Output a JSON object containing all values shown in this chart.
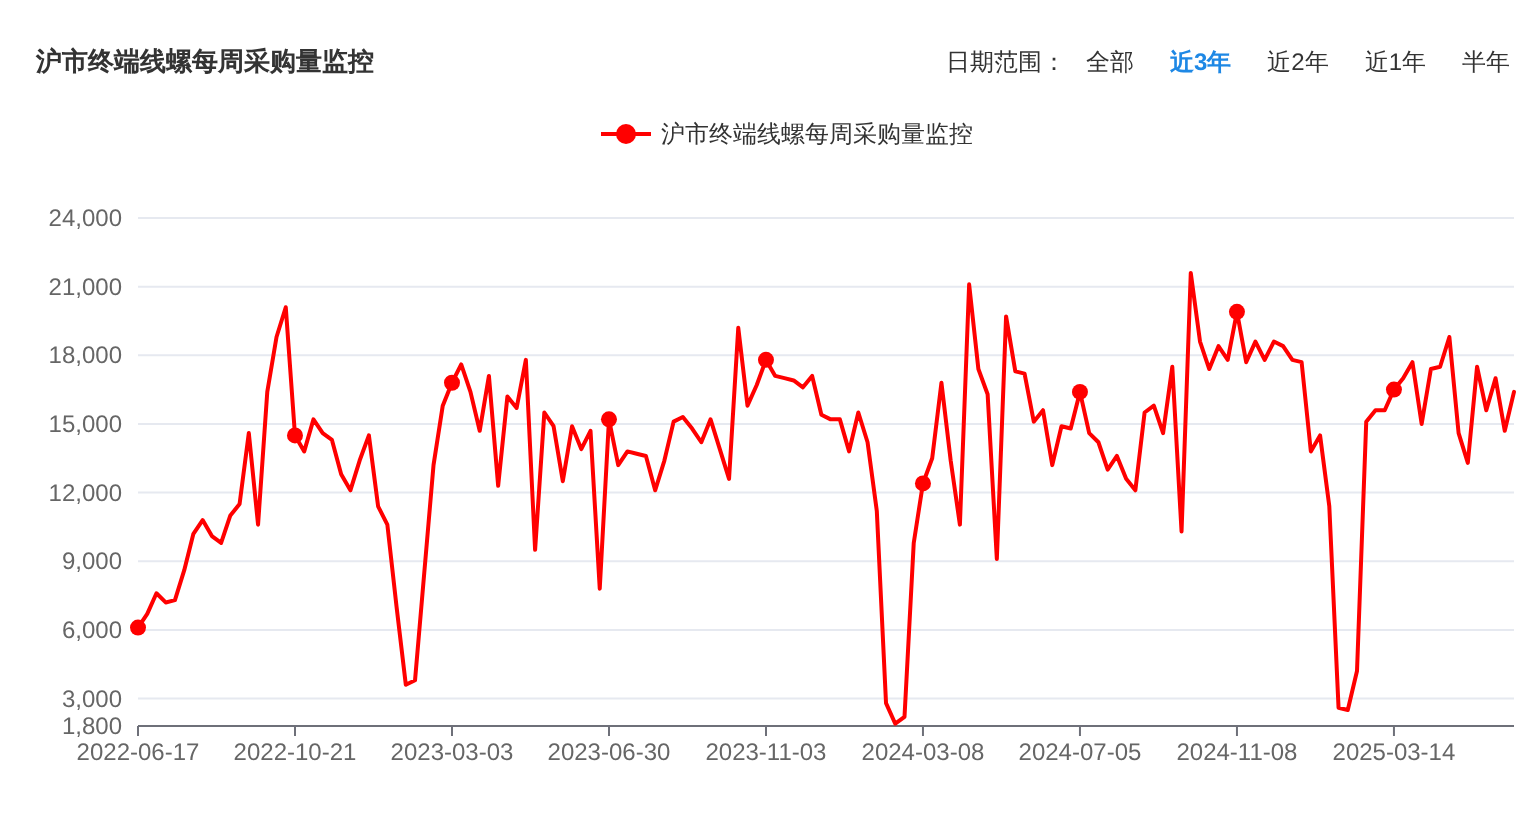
{
  "chart_data": {
    "type": "line",
    "title": "沪市终端线螺每周采购量监控",
    "annotations": [
      "日期范围：",
      "全部",
      "近3年",
      "近2年",
      "近1年",
      "半年"
    ],
    "categories": [
      "2022-06-17",
      null,
      null,
      null,
      null,
      null,
      null,
      null,
      null,
      null,
      null,
      null,
      null,
      null,
      null,
      null,
      null,
      "2022-10-21",
      null,
      null,
      null,
      null,
      null,
      null,
      null,
      null,
      null,
      null,
      null,
      null,
      null,
      null,
      null,
      null,
      "2023-03-03",
      null,
      null,
      null,
      null,
      null,
      null,
      null,
      null,
      null,
      null,
      null,
      null,
      null,
      null,
      null,
      null,
      "2023-06-30",
      null,
      null,
      null,
      null,
      null,
      null,
      null,
      null,
      null,
      null,
      null,
      null,
      null,
      null,
      null,
      null,
      "2023-11-03",
      null,
      null,
      null,
      null,
      null,
      null,
      null,
      null,
      null,
      null,
      null,
      null,
      null,
      null,
      null,
      null,
      "2024-03-08",
      null,
      null,
      null,
      null,
      null,
      null,
      null,
      null,
      null,
      null,
      null,
      null,
      null,
      null,
      null,
      null,
      "2024-07-05",
      null,
      null,
      null,
      null,
      null,
      null,
      null,
      null,
      null,
      null,
      null,
      null,
      null,
      null,
      null,
      null,
      "2024-11-08",
      null,
      null,
      null,
      null,
      null,
      null,
      null,
      null,
      null,
      null,
      null,
      null,
      null,
      null,
      null,
      null,
      "2025-03-14",
      null,
      null,
      null,
      null,
      null,
      null,
      null,
      null,
      null,
      null,
      null,
      null,
      null
    ],
    "series": [
      {
        "name": "沪市终端线螺每周采购量监控",
        "color": "#ff0000",
        "values": [
          6100,
          6700,
          7600,
          7200,
          7300,
          8600,
          10200,
          10800,
          10100,
          9800,
          11000,
          11500,
          14600,
          10600,
          16400,
          18800,
          20100,
          14500,
          13800,
          15200,
          14600,
          14300,
          12800,
          12100,
          13400,
          14500,
          11400,
          10600,
          7000,
          3600,
          3800,
          8500,
          13200,
          15800,
          16800,
          17600,
          16400,
          14700,
          17100,
          12300,
          16200,
          15700,
          17800,
          9500,
          15500,
          14900,
          12500,
          14900,
          13900,
          14700,
          7800,
          15200,
          13200,
          13800,
          13700,
          13600,
          12100,
          13400,
          15100,
          15300,
          14800,
          14200,
          15200,
          13900,
          12600,
          19200,
          15800,
          16700,
          17800,
          17100,
          17000,
          16900,
          16600,
          17100,
          15400,
          15200,
          15200,
          13800,
          15500,
          14200,
          11200,
          2800,
          1900,
          2200,
          9800,
          12400,
          13500,
          16800,
          13400,
          10600,
          21100,
          17400,
          16300,
          9100,
          19700,
          17300,
          17200,
          15100,
          15600,
          13200,
          14900,
          14800,
          16400,
          14600,
          14200,
          13000,
          13600,
          12600,
          12100,
          15500,
          15800,
          14600,
          17500,
          10300,
          21600,
          18600,
          17400,
          18400,
          17800,
          19900,
          17700,
          18600,
          17800,
          18600,
          18400,
          17800,
          17700,
          13800,
          14500,
          11400,
          2600,
          2500,
          4200,
          15100,
          15600,
          15600,
          16500,
          17000,
          17700,
          15000,
          17400,
          17500,
          18800,
          14600,
          13300,
          17500,
          15600,
          17000,
          14700,
          16400
        ]
      },
      {
        "type": "scatter",
        "color": "#ff0000",
        "values": [
          6100,
          null,
          null,
          null,
          null,
          null,
          null,
          null,
          null,
          null,
          null,
          null,
          null,
          null,
          null,
          null,
          null,
          14500,
          null,
          null,
          null,
          null,
          null,
          null,
          null,
          null,
          null,
          null,
          null,
          null,
          null,
          null,
          null,
          null,
          16800,
          null,
          null,
          null,
          null,
          null,
          null,
          null,
          null,
          null,
          null,
          null,
          null,
          null,
          null,
          null,
          null,
          15200,
          null,
          null,
          null,
          null,
          null,
          null,
          null,
          null,
          null,
          null,
          null,
          null,
          null,
          null,
          null,
          null,
          17800,
          null,
          null,
          null,
          null,
          null,
          null,
          null,
          null,
          null,
          null,
          null,
          null,
          null,
          null,
          null,
          null,
          12400,
          null,
          null,
          null,
          null,
          null,
          null,
          null,
          null,
          null,
          null,
          null,
          null,
          null,
          null,
          null,
          null,
          16400,
          null,
          null,
          null,
          null,
          null,
          null,
          null,
          null,
          null,
          null,
          null,
          null,
          null,
          null,
          null,
          null,
          19900,
          null,
          null,
          null,
          null,
          null,
          null,
          null,
          null,
          null,
          null,
          null,
          null,
          null,
          null,
          null,
          null,
          16500,
          null,
          null,
          null,
          null,
          null,
          null,
          null,
          null,
          null,
          null,
          null,
          null,
          null
        ]
      }
    ],
    "ylim": [
      1800,
      24000
    ],
    "yticks": [
      {
        "value": 1800,
        "label": "1,800"
      },
      {
        "value": 3000,
        "label": "3,000"
      },
      {
        "value": 6000,
        "label": "6,000"
      },
      {
        "value": 9000,
        "label": "9,000"
      },
      {
        "value": 12000,
        "label": "12,000"
      },
      {
        "value": 15000,
        "label": "15,000"
      },
      {
        "value": 18000,
        "label": "18,000"
      },
      {
        "value": 21000,
        "label": "21,000"
      },
      {
        "value": 24000,
        "label": "24,000"
      }
    ],
    "grid": "y",
    "legend": "top",
    "line_style": "solid"
  }
}
